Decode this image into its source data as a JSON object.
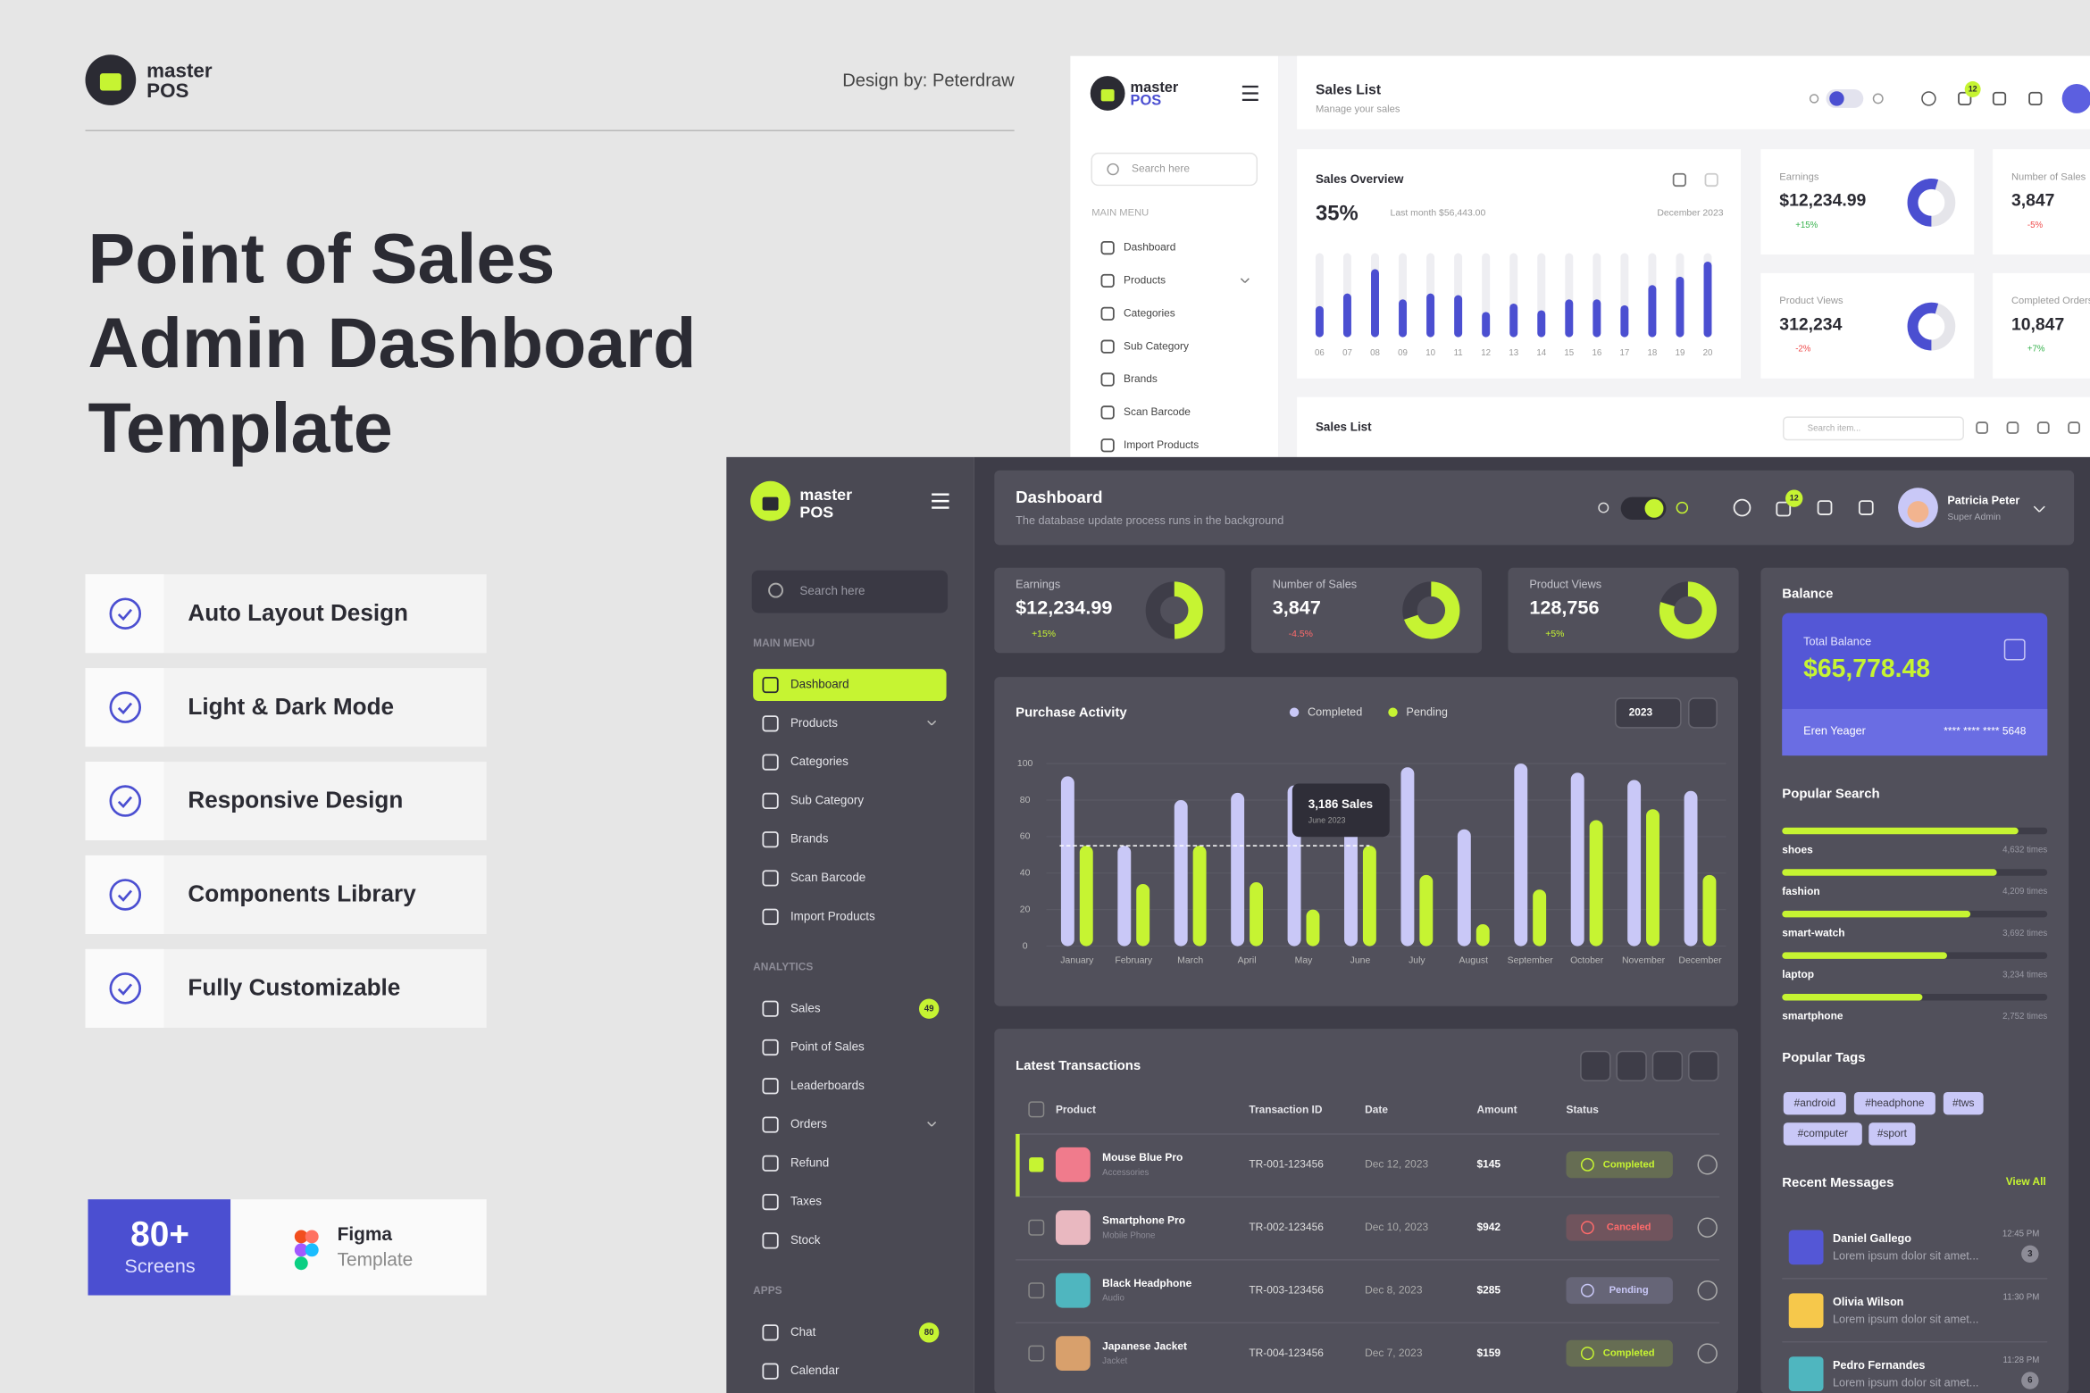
{
  "brand": {
    "name1": "master",
    "name2": "POS"
  },
  "credit": "Design by: Peterdraw",
  "headline": [
    "Point of Sales",
    "Admin Dashboard",
    "Template"
  ],
  "features": [
    "Auto Layout Design",
    "Light & Dark Mode",
    "Responsive Design",
    "Components Library",
    "Fully Customizable"
  ],
  "badge": {
    "count": "80+",
    "count_label": "Screens",
    "tool": "Figma",
    "tool_label": "Template"
  },
  "light": {
    "header": {
      "title": "Sales List",
      "subtitle": "Manage your sales",
      "notifications": "12"
    },
    "search": "Search here",
    "menu_title": "MAIN MENU",
    "menu": [
      "Dashboard",
      "Products",
      "Categories",
      "Sub Category",
      "Brands",
      "Scan Barcode",
      "Import Products"
    ],
    "stats": [
      {
        "label": "Earnings",
        "value": "$12,234.99",
        "change": "+15%"
      },
      {
        "label": "Number of Sales",
        "value": "3,847",
        "change": "-5%"
      },
      {
        "label": "Product Views",
        "value": "312,234",
        "change": "-2%"
      },
      {
        "label": "Completed Orders",
        "value": "10,847",
        "change": "+7%"
      }
    ],
    "table_title": "Sales List",
    "table_search": "Search item..."
  },
  "dark": {
    "header": {
      "title": "Dashboard",
      "subtitle": "The database update process runs in the background",
      "notifications": "12",
      "user": "Patricia Peter",
      "role": "Super Admin"
    },
    "search": "Search here",
    "menu": [
      {
        "title": "MAIN MENU",
        "items": [
          {
            "label": "Dashboard",
            "active": true
          },
          {
            "label": "Products",
            "has_submenu": true
          },
          {
            "label": "Categories"
          },
          {
            "label": "Sub Category"
          },
          {
            "label": "Brands"
          },
          {
            "label": "Scan Barcode"
          },
          {
            "label": "Import Products"
          }
        ]
      },
      {
        "title": "ANALYTICS",
        "items": [
          {
            "label": "Sales",
            "badge": "49"
          },
          {
            "label": "Point of Sales"
          },
          {
            "label": "Leaderboards"
          },
          {
            "label": "Orders",
            "has_submenu": true
          },
          {
            "label": "Refund"
          },
          {
            "label": "Taxes"
          },
          {
            "label": "Stock"
          }
        ]
      },
      {
        "title": "APPS",
        "items": [
          {
            "label": "Chat",
            "badge": "80"
          },
          {
            "label": "Calendar"
          }
        ]
      }
    ],
    "stats": [
      {
        "label": "Earnings",
        "value": "$12,234.99",
        "change": "+15%"
      },
      {
        "label": "Number of Sales",
        "value": "3,847",
        "change": "-4.5%"
      },
      {
        "label": "Product Views",
        "value": "128,756",
        "change": "+5%"
      }
    ],
    "balance": {
      "title": "Balance",
      "label": "Total Balance",
      "value": "$65,778.48",
      "holder": "Eren Yeager",
      "card": "**** **** **** 5648"
    },
    "popular_search": {
      "title": "Popular Search",
      "xlim": [
        0,
        5200
      ],
      "items": [
        {
          "term": "shoes",
          "count": 4632,
          "count_label": "4,632 times"
        },
        {
          "term": "fashion",
          "count": 4209,
          "count_label": "4,209 times"
        },
        {
          "term": "smart-watch",
          "count": 3692,
          "count_label": "3,692 times"
        },
        {
          "term": "laptop",
          "count": 3234,
          "count_label": "3,234 times"
        },
        {
          "term": "smartphone",
          "count": 2752,
          "count_label": "2,752 times"
        }
      ]
    },
    "popular_tags": {
      "title": "Popular Tags",
      "tags": [
        "#android",
        "#headphone",
        "#tws",
        "#computer",
        "#sport"
      ]
    },
    "messages": {
      "title": "Recent Messages",
      "action": "View All",
      "items": [
        {
          "name": "Daniel Gallego",
          "text": "Lorem ipsum dolor sit amet...",
          "time": "12:45 PM",
          "unread": "3"
        },
        {
          "name": "Olivia Wilson",
          "text": "Lorem ipsum dolor sit amet...",
          "time": "11:30 PM"
        },
        {
          "name": "Pedro Fernandes",
          "text": "Lorem ipsum dolor sit amet...",
          "time": "11:28 PM",
          "unread": "6"
        }
      ]
    },
    "transactions": {
      "title": "Latest Transactions",
      "columns": [
        "Product",
        "Transaction ID",
        "Date",
        "Amount",
        "Status"
      ],
      "rows": [
        {
          "product": "Mouse Blue Pro",
          "category": "Accessories",
          "id": "TR-001-123456",
          "date": "Dec 12, 2023",
          "amount": "$145",
          "status": "Completed",
          "status_color": "#c6f432",
          "selected": true
        },
        {
          "product": "Smartphone Pro",
          "category": "Mobile Phone",
          "id": "TR-002-123456",
          "date": "Dec 10, 2023",
          "amount": "$942",
          "status": "Canceled",
          "status_color": "#ff6b6b"
        },
        {
          "product": "Black Headphone",
          "category": "Audio",
          "id": "TR-003-123456",
          "date": "Dec 8, 2023",
          "amount": "$285",
          "status": "Pending",
          "status_color": "#c9c8f7"
        },
        {
          "product": "Japanese Jacket",
          "category": "Jacket",
          "id": "TR-004-123456",
          "date": "Dec 7, 2023",
          "amount": "$159",
          "status": "Completed",
          "status_color": "#c6f432"
        }
      ]
    }
  },
  "chart_data": [
    {
      "type": "bar",
      "title": "Purchase Activity",
      "categories": [
        "January",
        "February",
        "March",
        "April",
        "May",
        "June",
        "July",
        "August",
        "September",
        "October",
        "November",
        "December"
      ],
      "series": [
        {
          "name": "Completed",
          "color": "#c9c8f7",
          "values": [
            93,
            55,
            80,
            84,
            88,
            85,
            98,
            64,
            100,
            95,
            91,
            85
          ]
        },
        {
          "name": "Pending",
          "color": "#c6f432",
          "values": [
            55,
            34,
            55,
            35,
            20,
            55,
            39,
            12,
            31,
            69,
            75,
            39
          ]
        }
      ],
      "ylim": [
        0,
        100
      ],
      "yticks": [
        0,
        20,
        40,
        60,
        80,
        100
      ],
      "grid": true,
      "dropdown": "2023",
      "tooltip": {
        "title": "3,186 Sales",
        "subtitle": "June 2023"
      }
    },
    {
      "type": "bar",
      "title": "Sales Overview",
      "headline_value": "35%",
      "comparison": "Last month $56,443.00",
      "period": "December 2023",
      "categories": [
        "06",
        "07",
        "08",
        "09",
        "10",
        "11",
        "12",
        "13",
        "14",
        "15",
        "16",
        "17",
        "18",
        "19",
        "20"
      ],
      "values": [
        37,
        52,
        81,
        45,
        52,
        50,
        30,
        40,
        32,
        45,
        45,
        38,
        62,
        72,
        90
      ],
      "color": "#4b4fd1",
      "ylim": [
        0,
        100
      ]
    }
  ]
}
